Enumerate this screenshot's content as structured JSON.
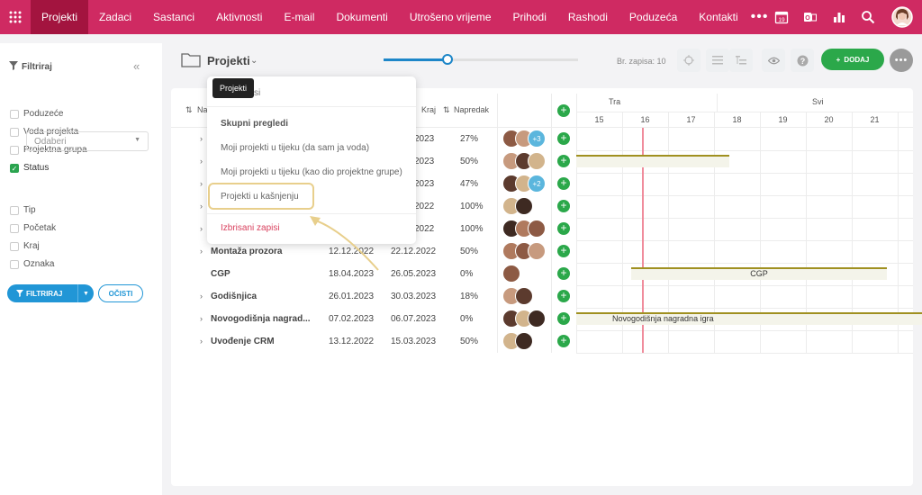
{
  "topnav": {
    "items": [
      "Projekti",
      "Zadaci",
      "Sastanci",
      "Aktivnosti",
      "E-mail",
      "Dokumenti",
      "Utrošeno vrijeme",
      "Prihodi",
      "Rashodi",
      "Poduzeća",
      "Kontakti"
    ],
    "more": "•••",
    "calendar_day": "19"
  },
  "sidebar": {
    "title": "Filtriraj",
    "filters": [
      {
        "label": "Poduzeće",
        "checked": false
      },
      {
        "label": "Voda projekta",
        "checked": false
      },
      {
        "label": "Projektna grupa",
        "checked": false
      },
      {
        "label": "Status",
        "checked": true
      },
      {
        "label": "Tip",
        "checked": false
      },
      {
        "label": "Početak",
        "checked": false
      },
      {
        "label": "Kraj",
        "checked": false
      },
      {
        "label": "Oznaka",
        "checked": false
      }
    ],
    "status_select": "Odaberi",
    "filter_button": "FILTRIRAJ",
    "clear_button": "OČISTI"
  },
  "header": {
    "title": "Projekti",
    "record_count": "Br. zapisa: 10",
    "add_button": "DODAJ",
    "zoom_level": 0.33
  },
  "table": {
    "col_name": "Na",
    "col_end": "Kraj",
    "col_progress": "Napredak",
    "rows": [
      {
        "name": "",
        "start": "",
        "end": "2023",
        "progress": "27%",
        "avatars": 2,
        "extra": "+3",
        "expand": true
      },
      {
        "name": "",
        "start": "",
        "end": "2023",
        "progress": "50%",
        "avatars": 3,
        "extra": "",
        "expand": true
      },
      {
        "name": "",
        "start": "",
        "end": "2023",
        "progress": "47%",
        "avatars": 2,
        "extra": "+2",
        "expand": true
      },
      {
        "name": "",
        "start": "",
        "end": "2022",
        "progress": "100%",
        "avatars": 2,
        "extra": "",
        "expand": true
      },
      {
        "name": "",
        "start": "",
        "end": "2022",
        "progress": "100%",
        "avatars": 3,
        "extra": "",
        "expand": true
      },
      {
        "name": "Montaža prozora",
        "start": "12.12.2022",
        "end": "22.12.2022",
        "progress": "50%",
        "avatars": 3,
        "extra": "",
        "expand": true
      },
      {
        "name": "CGP",
        "start": "18.04.2023",
        "end": "26.05.2023",
        "progress": "0%",
        "avatars": 1,
        "extra": "",
        "expand": false
      },
      {
        "name": "Godišnjica",
        "start": "26.01.2023",
        "end": "30.03.2023",
        "progress": "18%",
        "avatars": 2,
        "extra": "",
        "expand": true
      },
      {
        "name": "Novogodišnja nagrad...",
        "start": "07.02.2023",
        "end": "06.07.2023",
        "progress": "0%",
        "avatars": 3,
        "extra": "",
        "expand": true
      },
      {
        "name": "Uvođenje CRM",
        "start": "13.12.2022",
        "end": "15.03.2023",
        "progress": "50%",
        "avatars": 2,
        "extra": "",
        "expand": true
      }
    ]
  },
  "gantt": {
    "months": [
      "Tra",
      "Svi"
    ],
    "days": [
      "15",
      "16",
      "17",
      "18",
      "19",
      "20",
      "21"
    ],
    "bars": [
      {
        "label": ""
      },
      {
        "label": "CGP"
      },
      {
        "label": "Novogodišnja nagradna igra"
      }
    ]
  },
  "dropdown": {
    "tooltip": "Projekti",
    "partial": "si",
    "section": "Skupni pregledi",
    "items": [
      "Moji projekti u tijeku (da sam ja voda)",
      "Moji projekti u tijeku (kao dio projektne grupe)",
      "Projekti u kašnjenju"
    ],
    "deleted": "Izbrisani zapisi"
  },
  "colors": {
    "topbar": "#cf2a62",
    "active_tab": "#a3143f",
    "primary": "#2196d6",
    "add": "#2ba84a",
    "deleted": "#d9415e",
    "highlight": "#e8cf8c"
  }
}
